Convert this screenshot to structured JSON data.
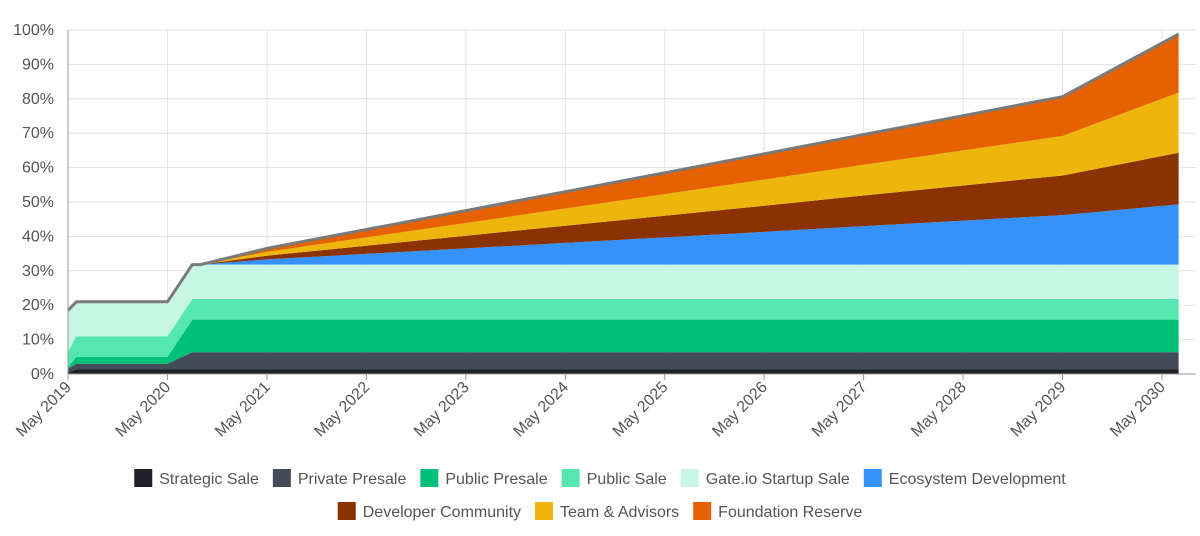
{
  "chart_data": {
    "type": "area",
    "stacked": true,
    "title": "",
    "xlabel": "",
    "ylabel": "",
    "ylim": [
      0,
      100
    ],
    "y_ticks": [
      "0%",
      "10%",
      "20%",
      "30%",
      "40%",
      "50%",
      "60%",
      "70%",
      "80%",
      "90%",
      "100%"
    ],
    "x_tick_labels": [
      "May 2019",
      "May 2020",
      "May 2021",
      "May 2022",
      "May 2023",
      "May 2024",
      "May 2025",
      "May 2026",
      "May 2027",
      "May 2028",
      "May 2029",
      "May 2030"
    ],
    "grid": true,
    "legend_position": "bottom",
    "x": [
      "May 2019",
      "Jun 2019",
      "May 2020",
      "Aug 2020",
      "Sep 2020",
      "May 2021",
      "May 2022",
      "May 2023",
      "May 2024",
      "May 2025",
      "May 2026",
      "May 2027",
      "May 2028",
      "May 2029",
      "Jul 2030"
    ],
    "series": [
      {
        "name": "Strategic Sale",
        "color": "#1f2329",
        "values": [
          0.5,
          1.3,
          1.3,
          1.3,
          1.3,
          1.3,
          1.3,
          1.3,
          1.3,
          1.3,
          1.3,
          1.3,
          1.3,
          1.3,
          1.3
        ]
      },
      {
        "name": "Private Presale",
        "color": "#434b56",
        "values": [
          1.0,
          1.7,
          1.7,
          5.0,
          5.0,
          5.0,
          5.0,
          5.0,
          5.0,
          5.0,
          5.0,
          5.0,
          5.0,
          5.0,
          5.0
        ]
      },
      {
        "name": "Public Presale",
        "color": "#00c07a",
        "values": [
          0.5,
          2.0,
          2.0,
          9.5,
          9.5,
          9.5,
          9.5,
          9.5,
          9.5,
          9.5,
          9.5,
          9.5,
          9.5,
          9.5,
          9.5
        ]
      },
      {
        "name": "Public Sale",
        "color": "#56e7b1",
        "values": [
          4.5,
          6.0,
          6.0,
          6.0,
          6.0,
          6.0,
          6.0,
          6.0,
          6.0,
          6.0,
          6.0,
          6.0,
          6.0,
          6.0,
          6.0
        ]
      },
      {
        "name": "Gate.io Startup Sale",
        "color": "#c8f6e4",
        "values": [
          12.0,
          10.0,
          10.0,
          10.0,
          10.0,
          10.0,
          10.0,
          10.0,
          10.0,
          10.0,
          10.0,
          10.0,
          10.0,
          10.0,
          10.0
        ]
      },
      {
        "name": "Ecosystem Development",
        "color": "#3591fb",
        "values": [
          0,
          0,
          0,
          0,
          0,
          1.5,
          3.1,
          4.7,
          6.3,
          7.9,
          9.5,
          11.2,
          12.8,
          14.4,
          17.5
        ]
      },
      {
        "name": "Developer Community",
        "color": "#8a3300",
        "values": [
          0,
          0,
          0,
          0,
          0,
          1.1,
          2.4,
          3.7,
          5.0,
          6.3,
          7.6,
          8.9,
          10.2,
          11.5,
          15.0
        ]
      },
      {
        "name": "Team & Advisors",
        "color": "#eeb60c",
        "values": [
          0,
          0,
          0,
          0,
          0,
          1.1,
          2.4,
          3.7,
          5.0,
          6.3,
          7.6,
          8.9,
          10.2,
          11.5,
          17.5
        ]
      },
      {
        "name": "Foundation Reserve",
        "color": "#e66200",
        "values": [
          0,
          0,
          0,
          0,
          0,
          1.0,
          2.3,
          3.6,
          4.9,
          6.2,
          7.5,
          8.8,
          10.1,
          11.4,
          17.0
        ]
      }
    ]
  }
}
